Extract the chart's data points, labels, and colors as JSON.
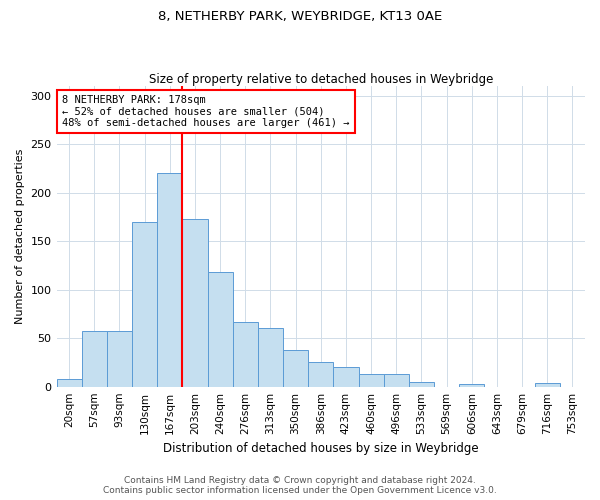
{
  "title1": "8, NETHERBY PARK, WEYBRIDGE, KT13 0AE",
  "title2": "Size of property relative to detached houses in Weybridge",
  "xlabel": "Distribution of detached houses by size in Weybridge",
  "ylabel": "Number of detached properties",
  "categories": [
    "20sqm",
    "57sqm",
    "93sqm",
    "130sqm",
    "167sqm",
    "203sqm",
    "240sqm",
    "276sqm",
    "313sqm",
    "350sqm",
    "386sqm",
    "423sqm",
    "460sqm",
    "496sqm",
    "533sqm",
    "569sqm",
    "606sqm",
    "643sqm",
    "679sqm",
    "716sqm",
    "753sqm"
  ],
  "values": [
    8,
    57,
    57,
    170,
    220,
    173,
    118,
    67,
    60,
    38,
    25,
    20,
    13,
    13,
    5,
    0,
    3,
    0,
    0,
    4,
    0
  ],
  "bar_color": "#c5dff0",
  "bar_edge_color": "#5b9bd5",
  "annotation_line1": "8 NETHERBY PARK: 178sqm",
  "annotation_line2": "← 52% of detached houses are smaller (504)",
  "annotation_line3": "48% of semi-detached houses are larger (461) →",
  "footer1": "Contains HM Land Registry data © Crown copyright and database right 2024.",
  "footer2": "Contains public sector information licensed under the Open Government Licence v3.0.",
  "ylim": [
    0,
    310
  ],
  "yticks": [
    0,
    50,
    100,
    150,
    200,
    250,
    300
  ],
  "ref_line_x": 4.5,
  "grid_color": "#d0dce8",
  "title1_fontsize": 9.5,
  "title2_fontsize": 8.5,
  "xlabel_fontsize": 8.5,
  "ylabel_fontsize": 8,
  "tick_fontsize": 7.5,
  "annot_fontsize": 7.5,
  "footer_fontsize": 6.5
}
